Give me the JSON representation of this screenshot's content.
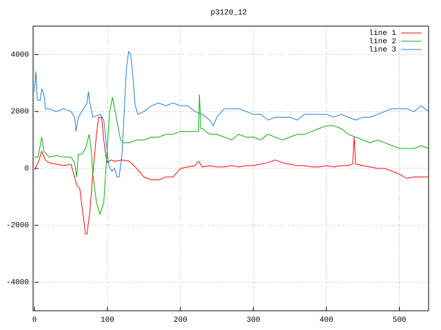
{
  "chart_data": {
    "type": "line",
    "title": "p3120_12",
    "xlim": [
      0,
      540
    ],
    "xticks": [
      0,
      100,
      200,
      300,
      400,
      500
    ],
    "ylim": [
      -5000,
      5000
    ],
    "yticks": [
      -4000,
      -2000,
      0,
      2000,
      4000
    ],
    "grid": true,
    "legend": "top-right",
    "series": [
      {
        "name": "line 1",
        "color": "#ff0000",
        "x": [
          0,
          5,
          10,
          15,
          20,
          30,
          40,
          50,
          55,
          58,
          62,
          66,
          70,
          72,
          76,
          80,
          85,
          88,
          92,
          95,
          98,
          100,
          105,
          110,
          120,
          130,
          140,
          150,
          160,
          170,
          180,
          190,
          200,
          210,
          220,
          225,
          230,
          240,
          250,
          260,
          270,
          280,
          290,
          300,
          310,
          320,
          330,
          340,
          350,
          360,
          370,
          380,
          390,
          400,
          410,
          420,
          430,
          436,
          438,
          440,
          450,
          460,
          470,
          480,
          490,
          500,
          510,
          520,
          530,
          540
        ],
        "values": [
          -50,
          200,
          600,
          300,
          200,
          150,
          100,
          150,
          -300,
          -600,
          -700,
          -1500,
          -2300,
          -2300,
          -1500,
          -200,
          1200,
          1800,
          1800,
          1000,
          400,
          200,
          300,
          250,
          300,
          250,
          0,
          -300,
          -400,
          -400,
          -300,
          -300,
          0,
          50,
          100,
          250,
          50,
          100,
          50,
          50,
          100,
          50,
          100,
          100,
          150,
          200,
          300,
          200,
          150,
          100,
          100,
          50,
          50,
          100,
          50,
          100,
          100,
          150,
          1100,
          150,
          100,
          50,
          0,
          0,
          -100,
          -200,
          -350,
          -300,
          -300,
          -300
        ]
      },
      {
        "name": "line 2",
        "color": "#00b000",
        "x": [
          0,
          5,
          10,
          13,
          20,
          30,
          40,
          50,
          55,
          58,
          60,
          65,
          70,
          75,
          78,
          80,
          85,
          90,
          95,
          100,
          103,
          107,
          112,
          118,
          122,
          130,
          140,
          150,
          160,
          170,
          180,
          190,
          200,
          210,
          220,
          225,
          226,
          228,
          230,
          240,
          250,
          260,
          270,
          280,
          290,
          300,
          310,
          320,
          330,
          340,
          350,
          360,
          370,
          380,
          390,
          400,
          410,
          420,
          430,
          440,
          450,
          460,
          470,
          480,
          490,
          500,
          510,
          520,
          530,
          540
        ],
        "values": [
          400,
          400,
          1100,
          600,
          400,
          450,
          400,
          400,
          200,
          -300,
          500,
          500,
          700,
          1200,
          600,
          -200,
          -1200,
          -1600,
          -1200,
          800,
          2000,
          2500,
          1800,
          1000,
          900,
          900,
          1000,
          1000,
          1100,
          1100,
          1200,
          1200,
          1300,
          1300,
          1300,
          1300,
          2600,
          1400,
          1400,
          1200,
          1200,
          1100,
          1000,
          1200,
          1100,
          1100,
          1000,
          1200,
          1100,
          1000,
          1100,
          1200,
          1200,
          1300,
          1400,
          1500,
          1500,
          1400,
          1200,
          1100,
          1000,
          900,
          1000,
          900,
          800,
          700,
          700,
          700,
          800,
          700
        ]
      },
      {
        "name": "line 3",
        "color": "#1a7fd0",
        "x": [
          0,
          2,
          4,
          8,
          10,
          13,
          15,
          20,
          30,
          40,
          50,
          55,
          57,
          60,
          65,
          72,
          74,
          76,
          80,
          90,
          95,
          98,
          102,
          106,
          110,
          113,
          116,
          120,
          123,
          126,
          129,
          132,
          135,
          138,
          142,
          150,
          160,
          170,
          180,
          190,
          200,
          210,
          220,
          230,
          240,
          245,
          250,
          260,
          270,
          280,
          290,
          300,
          310,
          320,
          330,
          340,
          350,
          360,
          370,
          380,
          390,
          400,
          410,
          420,
          430,
          440,
          450,
          460,
          470,
          480,
          490,
          500,
          510,
          520,
          530,
          540
        ],
        "values": [
          2700,
          3400,
          2400,
          2400,
          2800,
          2600,
          2100,
          2100,
          2000,
          2100,
          2000,
          1800,
          1300,
          1800,
          2000,
          2300,
          2700,
          2300,
          1800,
          1900,
          1700,
          1000,
          100,
          -100,
          0,
          -300,
          -300,
          500,
          2000,
          3500,
          4100,
          4000,
          3200,
          2200,
          1900,
          2000,
          2200,
          2300,
          2200,
          2300,
          2200,
          2200,
          2000,
          1900,
          1700,
          1500,
          1800,
          2100,
          2100,
          2100,
          2000,
          1900,
          1900,
          1700,
          1800,
          1800,
          1800,
          1700,
          1900,
          1900,
          1900,
          1900,
          1800,
          1900,
          1800,
          1700,
          1800,
          1800,
          1900,
          2000,
          2100,
          2100,
          2100,
          2000,
          2200,
          2000
        ]
      }
    ]
  }
}
